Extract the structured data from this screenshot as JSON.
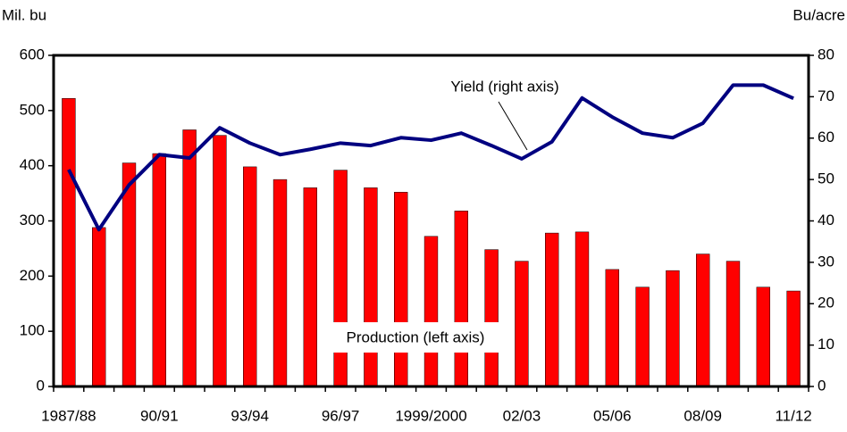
{
  "chart_data": {
    "type": "bar_line",
    "y_label": "Mil. bu",
    "y2_label": "Bu/acre",
    "categories": [
      "1987/88",
      null,
      null,
      "90/91",
      null,
      null,
      "93/94",
      null,
      null,
      "96/97",
      null,
      null,
      "1999/2000",
      null,
      null,
      "02/03",
      null,
      null,
      "05/06",
      null,
      null,
      "08/09",
      null,
      null,
      "11/12"
    ],
    "series": [
      {
        "name": "Production (left axis)",
        "type": "bar",
        "color": "#ff0000",
        "values": [
          522,
          288,
          405,
          422,
          465,
          455,
          398,
          375,
          360,
          392,
          360,
          352,
          272,
          318,
          248,
          227,
          278,
          280,
          212,
          180,
          210,
          240,
          227,
          180,
          173
        ]
      },
      {
        "name": "Yield (right axis)",
        "type": "line",
        "axis": "y2",
        "color": "#000080",
        "values": [
          52.4,
          37.9,
          48.7,
          56.0,
          55.2,
          62.5,
          58.8,
          56.0,
          57.3,
          58.8,
          58.2,
          60.1,
          59.5,
          61.2,
          58.2,
          55.0,
          59.1,
          69.7,
          65.1,
          61.2,
          60.1,
          63.6,
          72.8,
          72.8,
          69.6
        ]
      }
    ],
    "ylim": [
      0,
      600
    ],
    "yticks": [
      0,
      100,
      200,
      300,
      400,
      500,
      600
    ],
    "y2lim": [
      0,
      80
    ],
    "y2ticks": [
      0,
      10,
      20,
      30,
      40,
      50,
      60,
      70,
      80
    ]
  }
}
